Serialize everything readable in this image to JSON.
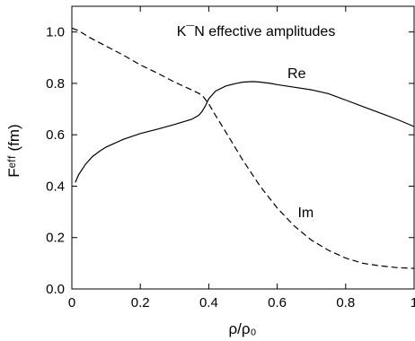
{
  "chart_data": {
    "type": "line",
    "title": "K¯N effective amplitudes",
    "xlabel": "ρ/ρ₀",
    "ylabel": "Fᵉᶠᶠ (fm)",
    "xlim": [
      0,
      1
    ],
    "ylim": [
      0,
      1.1
    ],
    "x_ticks": [
      0,
      0.2,
      0.4,
      0.6,
      0.8,
      1
    ],
    "x_tick_labels": [
      "0",
      "0.2",
      "0.4",
      "0.6",
      "0.8",
      "1"
    ],
    "y_ticks": [
      0,
      0.2,
      0.4,
      0.6,
      0.8,
      1.0
    ],
    "y_tick_labels": [
      "0.0",
      "0.2",
      "0.4",
      "0.6",
      "0.8",
      "1.0"
    ],
    "grid": false,
    "series": [
      {
        "name": "Re",
        "style": "solid",
        "color": "#000000",
        "x": [
          0.01,
          0.02,
          0.04,
          0.06,
          0.08,
          0.1,
          0.15,
          0.2,
          0.25,
          0.3,
          0.35,
          0.37,
          0.38,
          0.39,
          0.4,
          0.42,
          0.45,
          0.48,
          0.5,
          0.53,
          0.55,
          0.58,
          0.6,
          0.65,
          0.7,
          0.75,
          0.8,
          0.85,
          0.9,
          0.95,
          1.0
        ],
        "y": [
          0.415,
          0.445,
          0.485,
          0.515,
          0.535,
          0.552,
          0.582,
          0.605,
          0.622,
          0.64,
          0.66,
          0.675,
          0.69,
          0.712,
          0.74,
          0.77,
          0.79,
          0.8,
          0.805,
          0.807,
          0.805,
          0.8,
          0.795,
          0.785,
          0.775,
          0.76,
          0.735,
          0.71,
          0.685,
          0.66,
          0.632
        ]
      },
      {
        "name": "Im",
        "style": "dashed",
        "color": "#000000",
        "x": [
          0.0,
          0.02,
          0.05,
          0.1,
          0.15,
          0.2,
          0.25,
          0.3,
          0.35,
          0.38,
          0.4,
          0.42,
          0.45,
          0.5,
          0.55,
          0.6,
          0.65,
          0.7,
          0.75,
          0.8,
          0.85,
          0.9,
          0.95,
          1.0
        ],
        "y": [
          1.015,
          1.005,
          0.98,
          0.945,
          0.91,
          0.872,
          0.84,
          0.805,
          0.775,
          0.755,
          0.72,
          0.675,
          0.61,
          0.5,
          0.4,
          0.315,
          0.245,
          0.19,
          0.15,
          0.12,
          0.1,
          0.09,
          0.083,
          0.08
        ]
      }
    ],
    "annotations": [
      {
        "id": "re",
        "text": "Re",
        "x": 0.63,
        "y": 0.82
      },
      {
        "id": "im",
        "text": "Im",
        "x": 0.66,
        "y": 0.28
      }
    ]
  }
}
